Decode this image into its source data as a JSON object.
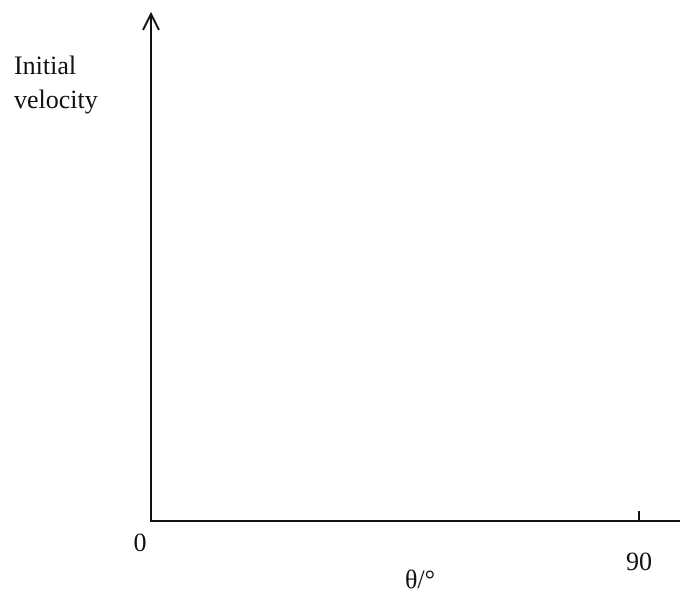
{
  "chart_data": {
    "type": "line",
    "x_label": "θ/°",
    "y_label": [
      "Initial",
      "velocity"
    ],
    "xlim": [
      0,
      90
    ],
    "xticks": [
      0,
      90
    ]
  }
}
